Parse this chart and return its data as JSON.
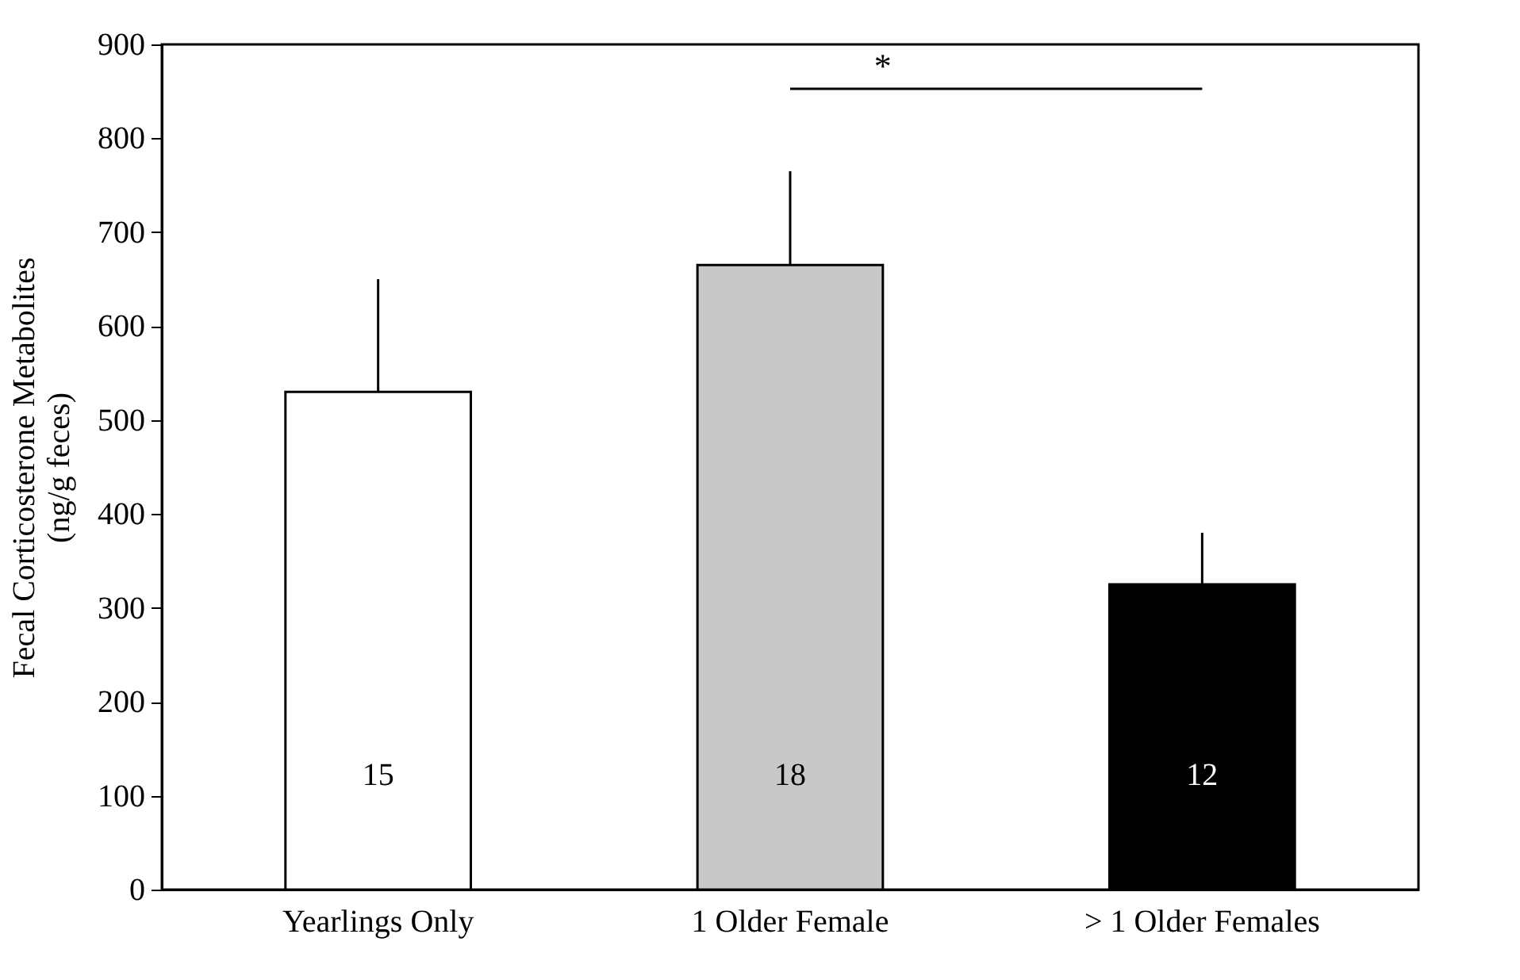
{
  "chart_data": {
    "type": "bar",
    "ylabel": "Fecal Corticosterone Metabolites\n(ng/g feces)",
    "categories": [
      "Yearlings Only",
      "1 Older Female",
      "> 1 Older Females"
    ],
    "values": [
      530,
      665,
      325
    ],
    "colors": [
      "#ffffff",
      "#c8c8c8",
      "#000000"
    ],
    "errors": [
      120,
      100,
      55
    ],
    "ylim": [
      0,
      900
    ],
    "yticks": [
      0,
      100,
      200,
      300,
      400,
      500,
      600,
      700,
      800,
      900
    ],
    "annotations": [
      "15",
      "18",
      "12",
      "*"
    ],
    "grid": false
  }
}
